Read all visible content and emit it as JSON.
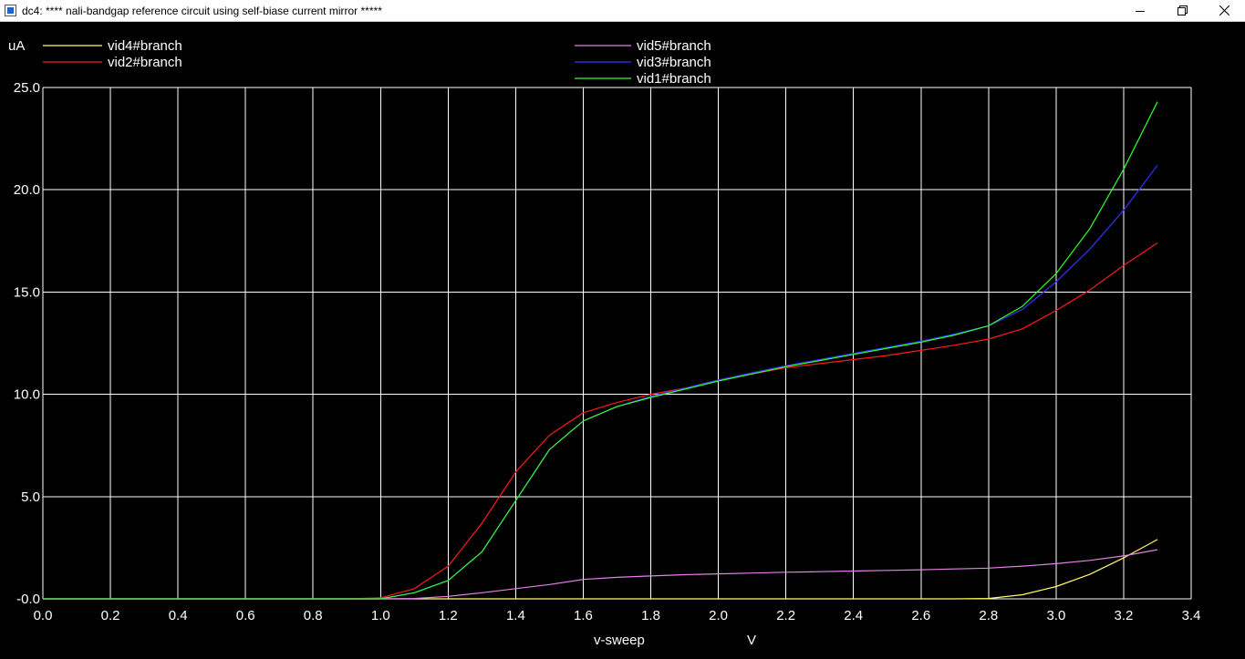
{
  "window": {
    "title": "dc4: **** nali-bandgap reference circuit using self-biase current mirror *****",
    "icon": "app-window-icon",
    "controls": [
      "minimize-icon",
      "restore-icon",
      "close-icon"
    ]
  },
  "colors": {
    "background": "#000000",
    "grid": "#ffffff",
    "text": "#ffffff"
  },
  "chart_data": {
    "type": "line",
    "xlabel": "v-sweep",
    "xunit": "V",
    "yunit": "uA",
    "xlim": [
      0.0,
      3.4
    ],
    "ylim": [
      0.0,
      25.0
    ],
    "grid": true,
    "legend_placement": "top",
    "x_ticks": [
      "0.0",
      "0.2",
      "0.4",
      "0.6",
      "0.8",
      "1.0",
      "1.2",
      "1.4",
      "1.6",
      "1.8",
      "2.0",
      "2.2",
      "2.4",
      "2.6",
      "2.8",
      "3.0",
      "3.2",
      "3.4"
    ],
    "y_ticks": [
      "-0.0",
      "5.0",
      "10.0",
      "15.0",
      "20.0",
      "25.0"
    ],
    "x": [
      0.0,
      0.1,
      0.2,
      0.3,
      0.4,
      0.5,
      0.6,
      0.7,
      0.8,
      0.9,
      1.0,
      1.1,
      1.2,
      1.3,
      1.4,
      1.5,
      1.6,
      1.7,
      1.8,
      1.9,
      2.0,
      2.1,
      2.2,
      2.3,
      2.4,
      2.5,
      2.6,
      2.7,
      2.8,
      2.9,
      3.0,
      3.1,
      3.2,
      3.3
    ],
    "series": [
      {
        "name": "vid4#branch",
        "color": "#ffff66",
        "values": [
          0,
          0,
          0,
          0,
          0,
          0,
          0,
          0,
          0,
          0,
          0,
          0,
          0,
          0,
          0,
          0,
          0,
          0,
          0,
          0,
          0,
          0,
          0,
          0,
          0,
          0,
          0,
          0,
          0.02,
          0.2,
          0.6,
          1.2,
          2.0,
          2.9
        ]
      },
      {
        "name": "vid2#branch",
        "color": "#ff1a1a",
        "values": [
          0,
          0,
          0,
          0,
          0,
          0,
          0,
          0,
          0,
          0,
          0.05,
          0.5,
          1.6,
          3.7,
          6.2,
          8.0,
          9.1,
          9.6,
          10.0,
          10.3,
          10.7,
          11.0,
          11.3,
          11.5,
          11.7,
          11.9,
          12.15,
          12.4,
          12.7,
          13.2,
          14.1,
          15.1,
          16.3,
          17.4
        ]
      },
      {
        "name": "vid5#branch",
        "color": "#e680e6",
        "values": [
          0,
          0,
          0,
          0,
          0,
          0,
          0,
          0,
          0,
          0,
          0,
          0.02,
          0.12,
          0.3,
          0.5,
          0.7,
          0.95,
          1.05,
          1.12,
          1.18,
          1.22,
          1.26,
          1.3,
          1.33,
          1.36,
          1.39,
          1.42,
          1.46,
          1.5,
          1.6,
          1.72,
          1.88,
          2.1,
          2.4
        ]
      },
      {
        "name": "vid3#branch",
        "color": "#3333ff",
        "values": [
          0,
          0,
          0,
          0,
          0,
          0,
          0,
          0,
          0,
          0,
          0,
          0.3,
          0.9,
          2.3,
          4.8,
          7.3,
          8.7,
          9.4,
          9.9,
          10.3,
          10.7,
          11.05,
          11.4,
          11.7,
          12.0,
          12.3,
          12.6,
          12.95,
          13.35,
          14.15,
          15.5,
          17.1,
          19.0,
          21.2
        ]
      },
      {
        "name": "vid1#branch",
        "color": "#33ff33",
        "values": [
          0,
          0,
          0,
          0,
          0,
          0,
          0,
          0,
          0,
          0,
          0,
          0.3,
          0.9,
          2.3,
          4.8,
          7.3,
          8.7,
          9.4,
          9.85,
          10.25,
          10.65,
          11.0,
          11.35,
          11.65,
          11.95,
          12.25,
          12.55,
          12.9,
          13.35,
          14.3,
          15.9,
          18.1,
          21.0,
          24.3
        ]
      }
    ]
  }
}
